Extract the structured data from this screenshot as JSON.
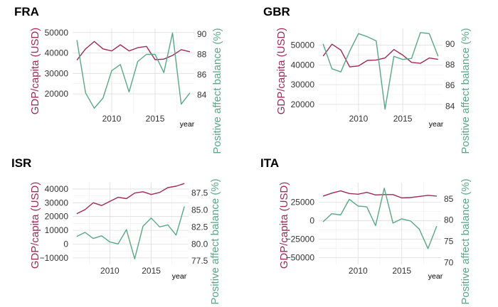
{
  "colors": {
    "gdp": "#9e2a55",
    "pab": "#5aa785"
  },
  "chart_data": [
    {
      "type": "line",
      "title": "FRA",
      "xlabel": "year",
      "ylabel_left": "GDP/capita (USD)",
      "ylabel_right": "Positive affect balance (%)",
      "x": [
        2006,
        2007,
        2008,
        2009,
        2010,
        2011,
        2012,
        2013,
        2014,
        2015,
        2016,
        2017,
        2018,
        2019
      ],
      "xlim": [
        2005.5,
        2019.5
      ],
      "x_ticks": [
        2010,
        2015
      ],
      "left_ylim": [
        11000,
        52000
      ],
      "left_ticks": [
        20000,
        30000,
        40000,
        50000
      ],
      "right_ylim": [
        82.3,
        90.55
      ],
      "right_ticks": [
        84,
        86,
        88,
        90
      ],
      "series": [
        {
          "name": "GDP/capita (USD)",
          "axis": "left",
          "values": [
            36500,
            42000,
            45600,
            42000,
            41000,
            44000,
            41000,
            42600,
            43200,
            36700,
            37000,
            38800,
            41600,
            40600
          ]
        },
        {
          "name": "Positive affect balance (%)",
          "axis": "right",
          "values": [
            89.4,
            84.2,
            82.7,
            83.7,
            86.4,
            87.0,
            84.3,
            87.3,
            88.0,
            88.0,
            86.2,
            90.1,
            83.1,
            84.2
          ]
        }
      ]
    },
    {
      "type": "line",
      "title": "GBR",
      "xlabel": "year",
      "ylabel_left": "GDP/capita (USD)",
      "ylabel_right": "Positive affect balance (%)",
      "x": [
        2006,
        2007,
        2008,
        2009,
        2010,
        2011,
        2012,
        2013,
        2014,
        2015,
        2016,
        2017,
        2018,
        2019
      ],
      "xlim": [
        2005.5,
        2019.5
      ],
      "x_ticks": [
        2010,
        2015
      ],
      "left_ylim": [
        16000,
        58500
      ],
      "left_ticks": [
        20000,
        30000,
        40000,
        50000
      ],
      "right_ylim": [
        83.4,
        91.5
      ],
      "right_ticks": [
        84,
        86,
        88,
        90
      ],
      "series": [
        {
          "name": "GDP/capita (USD)",
          "axis": "left",
          "values": [
            44500,
            50500,
            47500,
            39000,
            39500,
            42300,
            42500,
            43500,
            47800,
            45000,
            41300,
            40800,
            43500,
            42800
          ]
        },
        {
          "name": "Positive affect balance (%)",
          "axis": "right",
          "values": [
            90.0,
            87.6,
            87.3,
            89.3,
            91.0,
            90.7,
            90.3,
            83.7,
            88.8,
            88.5,
            88.6,
            91.1,
            91.0,
            88.8
          ]
        }
      ]
    },
    {
      "type": "line",
      "title": "ISR",
      "xlabel": "year",
      "ylabel_left": "GDP/capita (USD)",
      "ylabel_right": "Positive affect balance (%)",
      "x": [
        2006,
        2007,
        2008,
        2009,
        2010,
        2011,
        2012,
        2013,
        2014,
        2015,
        2016,
        2017,
        2018,
        2019
      ],
      "xlim": [
        2005.5,
        2019.5
      ],
      "x_ticks": [
        2010,
        2015
      ],
      "left_ylim": [
        -14700,
        44600
      ],
      "left_ticks": [
        -10000,
        0,
        10000,
        20000,
        30000,
        40000
      ],
      "right_ylim": [
        77.0,
        89.0
      ],
      "right_ticks": [
        77.5,
        80.0,
        82.5,
        85.0,
        87.5
      ],
      "series": [
        {
          "name": "GDP/capita (USD)",
          "axis": "left",
          "values": [
            22000,
            25000,
            30000,
            28000,
            31000,
            34000,
            33000,
            37000,
            38000,
            36000,
            37500,
            41000,
            42000,
            44000
          ]
        },
        {
          "name": "Positive affect balance (%)",
          "axis": "right",
          "values": [
            81.1,
            81.7,
            80.8,
            81.2,
            80.3,
            80.0,
            82.1,
            77.8,
            82.6,
            83.8,
            82.5,
            82.8,
            81.3,
            85.5
          ]
        }
      ]
    },
    {
      "type": "line",
      "title": "ITA",
      "xlabel": "year",
      "ylabel_left": "GDP/capita (USD)",
      "ylabel_right": "Positive affect balance (%)",
      "x": [
        2006,
        2007,
        2008,
        2009,
        2010,
        2011,
        2012,
        2013,
        2014,
        2015,
        2016,
        2017,
        2018,
        2019
      ],
      "xlim": [
        2005.5,
        2019.5
      ],
      "x_ticks": [
        2010,
        2015
      ],
      "left_ylim": [
        -59000,
        51700
      ],
      "left_ticks": [
        -50000,
        -25000,
        0,
        25000
      ],
      "right_ylim": [
        69.6,
        88.8
      ],
      "right_ticks": [
        70,
        75,
        80,
        85
      ],
      "series": [
        {
          "name": "GDP/capita (USD)",
          "axis": "left",
          "values": [
            33500,
            37500,
            40500,
            37000,
            36000,
            38500,
            35000,
            35500,
            35500,
            31000,
            31500,
            33000,
            34500,
            33500
          ]
        },
        {
          "name": "Positive affect balance (%)",
          "axis": "right",
          "values": [
            79.6,
            81.5,
            81.2,
            84.9,
            83.3,
            83.1,
            78.7,
            87.5,
            79.3,
            80.3,
            79.8,
            77.9,
            73.3,
            78.6
          ]
        }
      ]
    }
  ]
}
